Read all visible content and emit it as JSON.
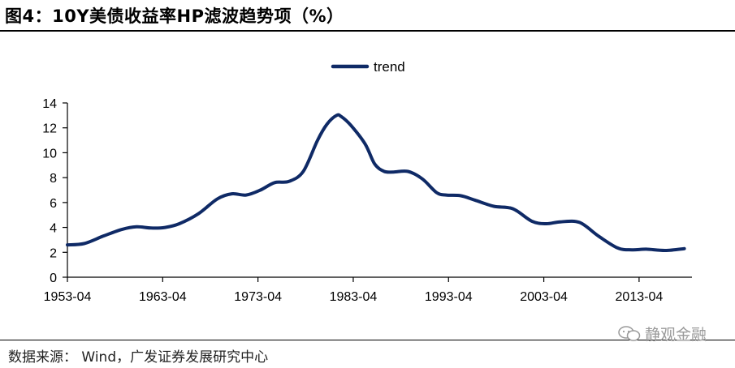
{
  "title": "图4：10Y美债收益率HP滤波趋势项（%）",
  "source": "数据来源： Wind，广发证券发展研究中心",
  "watermark": "静观金融",
  "chart_data": {
    "type": "line",
    "title": "图4：10Y美债收益率HP滤波趋势项（%）",
    "xlabel": "",
    "ylabel": "",
    "legend_position": "top-center",
    "grid": false,
    "series_color": "#0f2a66",
    "ylim": [
      0,
      14
    ],
    "yticks": [
      0,
      2,
      4,
      6,
      8,
      10,
      12,
      14
    ],
    "xticks": [
      "1953-04",
      "1963-04",
      "1973-04",
      "1983-04",
      "1993-04",
      "2003-04",
      "2013-04"
    ],
    "xlim": [
      1953.25,
      2018.8
    ],
    "series": [
      {
        "name": "trend",
        "x": [
          1953.25,
          1955.0,
          1957.0,
          1959.0,
          1960.5,
          1962.0,
          1963.5,
          1965.0,
          1967.0,
          1969.0,
          1970.5,
          1972.0,
          1973.5,
          1975.0,
          1976.5,
          1978.0,
          1979.5,
          1980.5,
          1981.5,
          1982.0,
          1983.0,
          1984.5,
          1985.5,
          1986.5,
          1987.5,
          1989.0,
          1990.5,
          1992.0,
          1993.0,
          1994.5,
          1996.0,
          1998.0,
          2000.0,
          2002.0,
          2003.5,
          2005.0,
          2007.0,
          2009.0,
          2011.0,
          2012.5,
          2014.0,
          2016.0,
          2018.0
        ],
        "y": [
          2.6,
          2.7,
          3.3,
          3.85,
          4.05,
          3.95,
          4.0,
          4.3,
          5.1,
          6.3,
          6.7,
          6.6,
          7.0,
          7.6,
          7.7,
          8.5,
          11.0,
          12.3,
          13.0,
          12.9,
          12.2,
          10.7,
          9.1,
          8.5,
          8.45,
          8.5,
          7.9,
          6.8,
          6.6,
          6.55,
          6.2,
          5.7,
          5.5,
          4.5,
          4.3,
          4.45,
          4.4,
          3.3,
          2.35,
          2.2,
          2.25,
          2.15,
          2.3
        ]
      }
    ]
  }
}
